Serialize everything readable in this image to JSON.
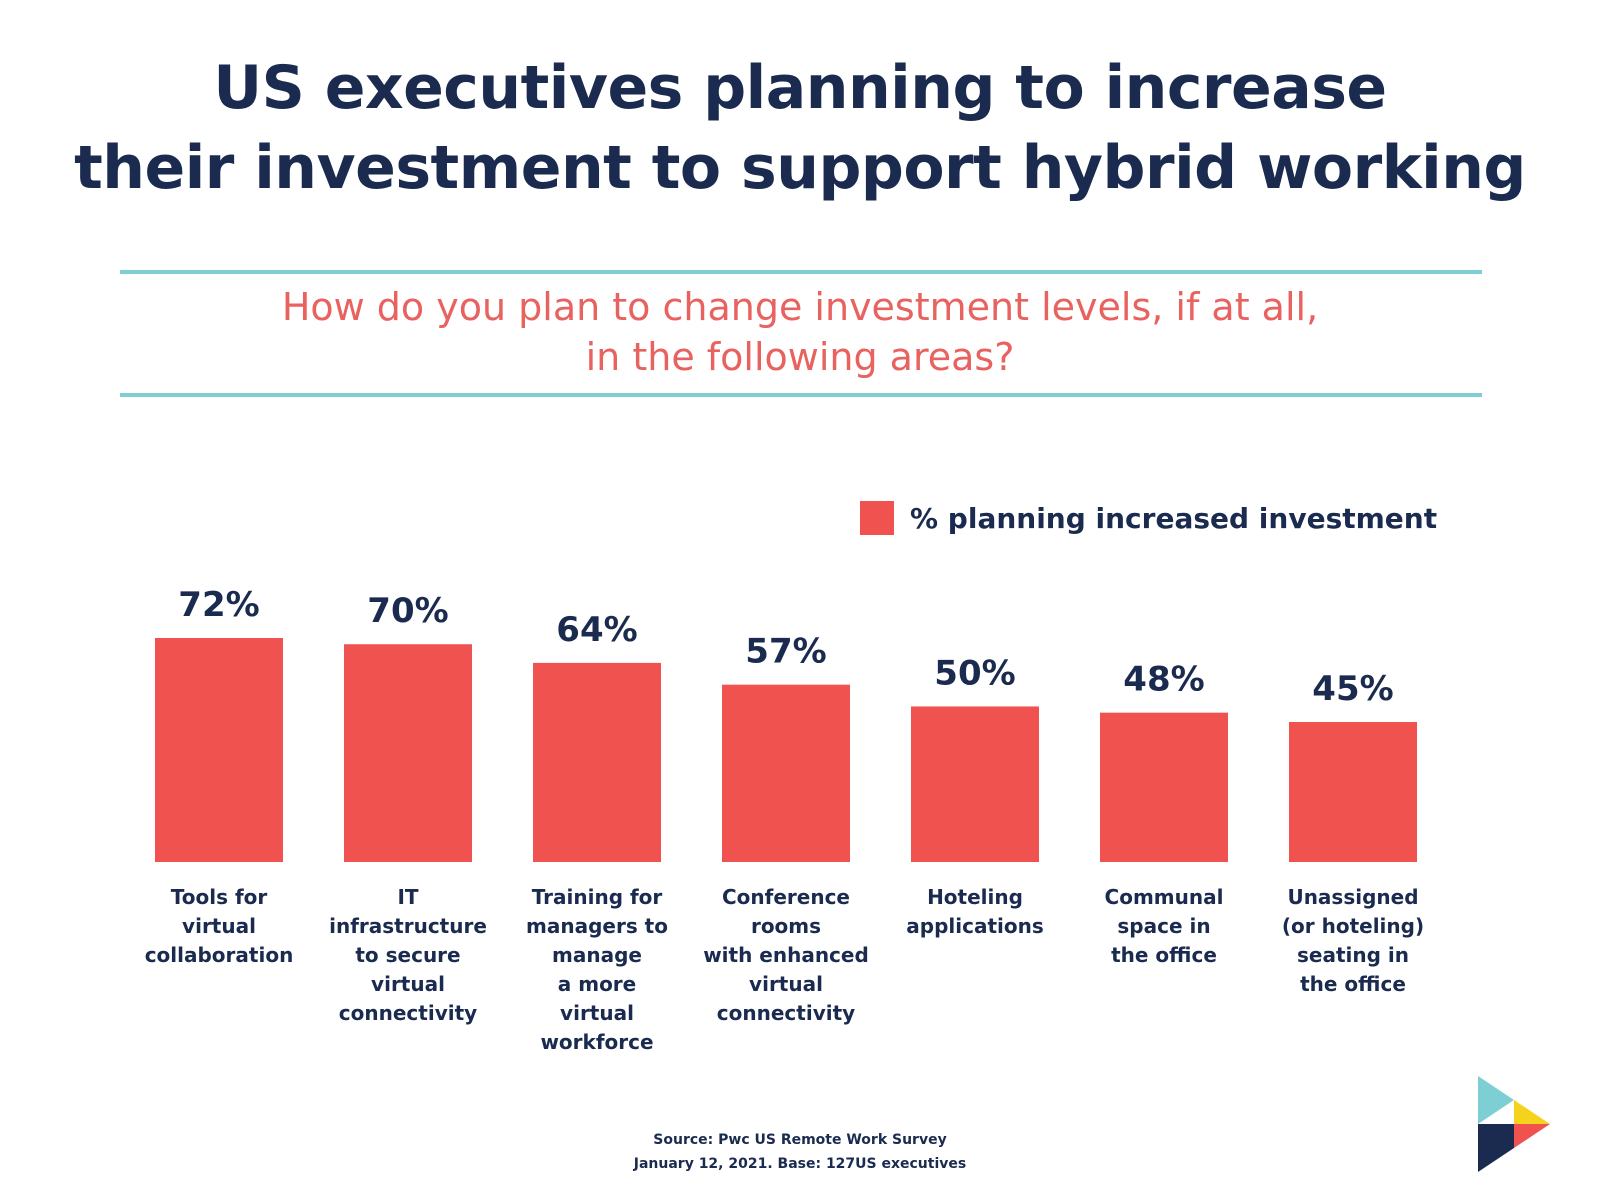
{
  "title_lines": [
    "US executives planning to increase",
    "their investment to support hybrid working"
  ],
  "subtitle_lines": [
    "How do you plan to change investment levels, if at all,",
    "in the following areas?"
  ],
  "legend_label": "% planning increased investment",
  "source_lines": [
    "Source: Pwc US Remote Work Survey",
    "January 12, 2021. Base: 127US executives"
  ],
  "colors": {
    "bar": "#f0524f",
    "title": "#1a2b4f",
    "subtitle": "#e8625f",
    "rule": "#7ecfd3"
  },
  "chart_data": {
    "type": "bar",
    "categories": [
      [
        "Tools for",
        "virtual",
        "collaboration"
      ],
      [
        "IT",
        "infrastructure",
        "to secure",
        "virtual",
        "connectivity"
      ],
      [
        "Training for",
        "managers to",
        "manage",
        "a more",
        "virtual",
        "workforce"
      ],
      [
        "Conference",
        "rooms",
        "with enhanced",
        "virtual",
        "connectivity"
      ],
      [
        "Hoteling",
        "applications"
      ],
      [
        "Communal",
        "space in",
        "the office"
      ],
      [
        "Unassigned",
        "(or hoteling)",
        "seating in",
        "the office"
      ]
    ],
    "series": [
      {
        "name": "% planning increased investment",
        "values": [
          72,
          70,
          64,
          57,
          50,
          48,
          45
        ]
      }
    ],
    "value_labels": [
      "72%",
      "70%",
      "64%",
      "57%",
      "50%",
      "48%",
      "45%"
    ],
    "ylim": [
      0,
      72
    ],
    "grid": false,
    "legend_position": "top-right"
  }
}
